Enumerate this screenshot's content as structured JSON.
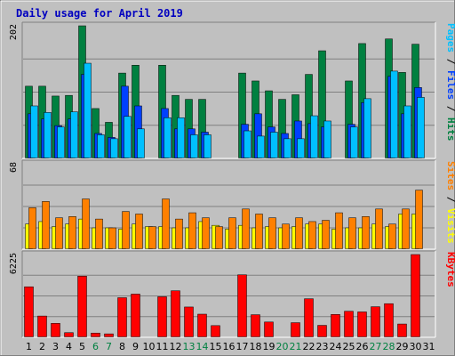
{
  "chart_data": {
    "type": "bar",
    "title": "Daily usage for April 2019",
    "x": [
      "1",
      "2",
      "3",
      "4",
      "5",
      "6",
      "7",
      "8",
      "9",
      "10",
      "11",
      "12",
      "13",
      "14",
      "15",
      "16",
      "17",
      "18",
      "19",
      "20",
      "21",
      "22",
      "23",
      "24",
      "25",
      "26",
      "27",
      "28",
      "29",
      "30",
      "31"
    ],
    "weekend_days": [
      "6",
      "7",
      "13",
      "14",
      "20",
      "21",
      "27",
      "28"
    ],
    "panels": [
      {
        "name": "hits-files-pages",
        "ymax_label": "202",
        "ymax": 202,
        "right_label": [
          {
            "text": "Pages",
            "color": "#00c0ff"
          },
          {
            "text": " / ",
            "color": "#000000"
          },
          {
            "text": "Files",
            "color": "#0040ff"
          },
          {
            "text": " / ",
            "color": "#000000"
          },
          {
            "text": "Hits",
            "color": "#008040"
          }
        ],
        "series": [
          {
            "name": "Hits",
            "color": "#008040",
            "values": [
              110,
              110,
              95,
              96,
              202,
              76,
              55,
              130,
              142,
              0,
              142,
              96,
              90,
              90,
              0,
              0,
              130,
              118,
              103,
              90,
              97,
              128,
              164,
              0,
              118,
              175,
              0,
              182,
              131,
              174,
              0
            ]
          },
          {
            "name": "Files",
            "color": "#0040ff",
            "values": [
              68,
              60,
              50,
              60,
              128,
              38,
              32,
              110,
              80,
              0,
              76,
              45,
              45,
              40,
              0,
              0,
              52,
              68,
              48,
              38,
              57,
              53,
              48,
              0,
              52,
              85,
              0,
              125,
              68,
              108,
              0
            ]
          },
          {
            "name": "Pages",
            "color": "#00c0ff",
            "values": [
              80,
              70,
              48,
              71,
              145,
              36,
              30,
              64,
              45,
              0,
              62,
              62,
              36,
              36,
              0,
              0,
              42,
              34,
              40,
              30,
              30,
              65,
              57,
              0,
              48,
              91,
              0,
              133,
              80,
              93,
              0
            ]
          }
        ]
      },
      {
        "name": "visits-sites",
        "ymax_label": "68",
        "ymax": 68,
        "right_label": [
          {
            "text": "Sites",
            "color": "#ff8000"
          },
          {
            "text": " / ",
            "color": "#000000"
          },
          {
            "text": "Visits",
            "color": "#ffff00"
          }
        ],
        "series": [
          {
            "name": "Visits",
            "color": "#ffff00",
            "values": [
              20,
              22,
              18,
              20,
              24,
              17,
              17,
              16,
              20,
              18,
              18,
              17,
              17,
              22,
              19,
              16,
              19,
              17,
              18,
              17,
              18,
              20,
              20,
              16,
              17,
              17,
              20,
              18,
              28,
              28,
              0
            ]
          },
          {
            "name": "Sites",
            "color": "#ff8000",
            "values": [
              33,
              38,
              25,
              26,
              40,
              24,
              17,
              30,
              28,
              18,
              40,
              24,
              29,
              25,
              18,
              25,
              32,
              28,
              25,
              20,
              25,
              22,
              23,
              29,
              25,
              26,
              32,
              20,
              32,
              47,
              0
            ]
          }
        ]
      },
      {
        "name": "kbytes",
        "ymax_label": "6225",
        "ymax": 6225,
        "right_label": [
          {
            "text": "KBytes",
            "color": "#ff0000"
          }
        ],
        "series": [
          {
            "name": "KBytes",
            "color": "#ff0000",
            "values": [
              3800,
              1600,
              1050,
              350,
              4600,
              320,
              260,
              2980,
              3250,
              0,
              3050,
              3500,
              2280,
              1740,
              880,
              0,
              4700,
              1700,
              1150,
              0,
              1100,
              2900,
              900,
              1720,
              1960,
              1910,
              2300,
              2530,
              1000,
              6225,
              0
            ]
          }
        ]
      }
    ]
  }
}
